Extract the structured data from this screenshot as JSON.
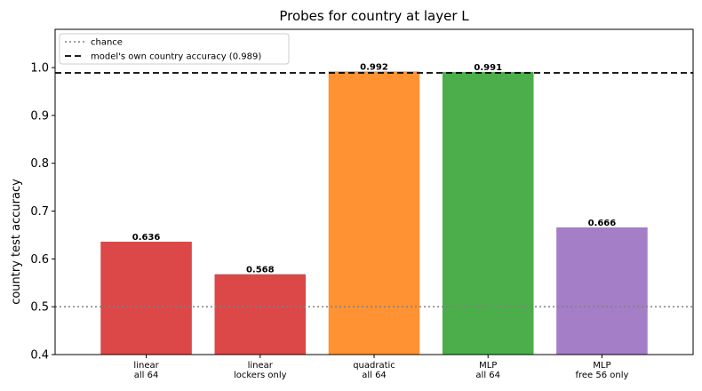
{
  "chart_data": {
    "type": "bar",
    "title": "Probes for country at layer L",
    "xlabel": "",
    "ylabel": "country test accuracy",
    "ylim": [
      0.4,
      1.08
    ],
    "yticks": [
      "0.4",
      "0.5",
      "0.6",
      "0.7",
      "0.8",
      "0.9",
      "1.0"
    ],
    "categories": [
      [
        "linear",
        "all 64"
      ],
      [
        "linear",
        "lockers only"
      ],
      [
        "quadratic",
        "all 64"
      ],
      [
        "MLP",
        "all 64"
      ],
      [
        "MLP",
        "free 56 only"
      ]
    ],
    "values": [
      0.636,
      0.568,
      0.992,
      0.991,
      0.666
    ],
    "value_labels": [
      "0.636",
      "0.568",
      "0.992",
      "0.991",
      "0.666"
    ],
    "colors": [
      "#d62728",
      "#d62728",
      "#ff7f0e",
      "#2ca02c",
      "#9467bd"
    ],
    "reference_lines": [
      {
        "name": "chance",
        "value": 0.5,
        "style": "dotted",
        "color": "#808080"
      },
      {
        "name": "model's own country accuracy (0.989)",
        "value": 0.989,
        "style": "dashed",
        "color": "#000000"
      }
    ],
    "legend_position": "top-left",
    "grid": false
  }
}
